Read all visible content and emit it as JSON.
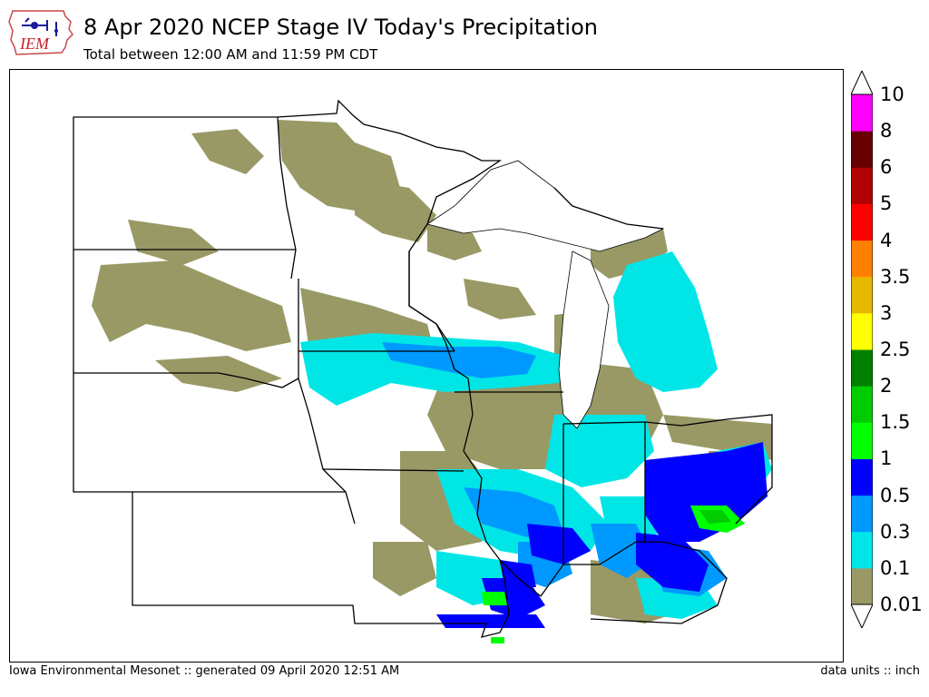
{
  "header": {
    "logo_text": "IEM",
    "title": "8 Apr 2020 NCEP Stage IV Today's Precipitation",
    "subtitle": "Total between 12:00 AM and 11:59 PM CDT"
  },
  "footer": {
    "left": "Iowa Environmental Mesonet :: generated 09 April 2020 12:51 AM",
    "right": "data units :: inch"
  },
  "legend": {
    "colors": [
      "#999966",
      "#00e6e6",
      "#0099ff",
      "#0000ff",
      "#00ff00",
      "#00cc00",
      "#008000",
      "#ffff00",
      "#e6b800",
      "#ff8000",
      "#ff0000",
      "#b30000",
      "#660000",
      "#ff00ff"
    ],
    "labels": [
      "0.01",
      "0.1",
      "0.3",
      "0.5",
      "1",
      "1.5",
      "2",
      "2.5",
      "3",
      "3.5",
      "4",
      "5",
      "6",
      "8",
      "10"
    ]
  }
}
